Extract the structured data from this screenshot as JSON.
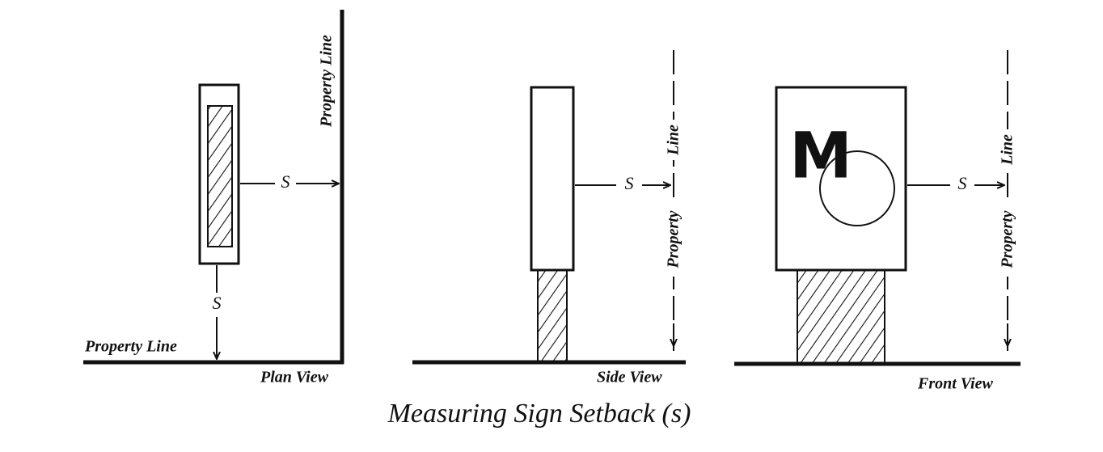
{
  "title": "Measuring Sign Setback (s)",
  "plan_view": {
    "label": "Plan View",
    "property_line_side": "Property Line",
    "property_line_front": "Property Line",
    "setback_side": "S",
    "setback_front": "S"
  },
  "side_view": {
    "label": "Side View",
    "property_line_top": "Line",
    "property_line_bottom": "Property",
    "setback": "S"
  },
  "front_view": {
    "label": "Front View",
    "property_line_top": "Line",
    "property_line_bottom": "Property",
    "setback": "S",
    "sign_letter": "M"
  }
}
